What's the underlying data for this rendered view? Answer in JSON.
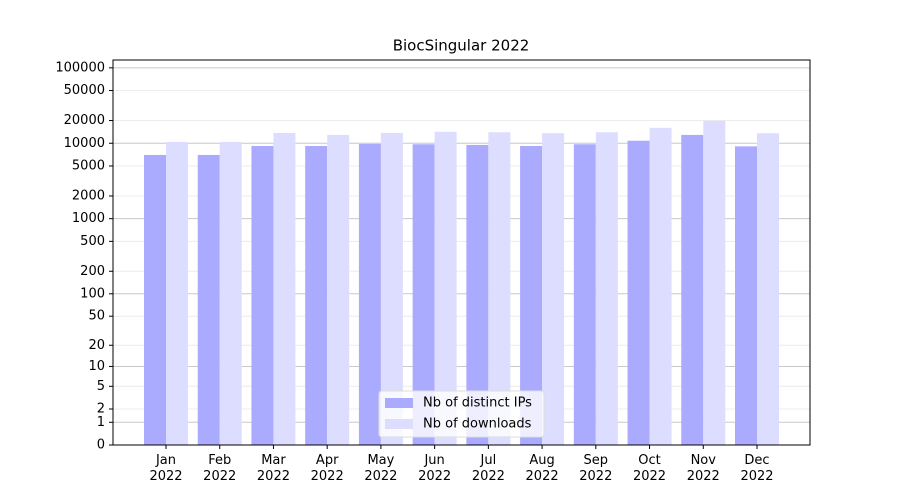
{
  "chart_data": {
    "type": "bar",
    "title": "BiocSingular 2022",
    "categories": [
      "Jan\n2022",
      "Feb\n2022",
      "Mar\n2022",
      "Apr\n2022",
      "May\n2022",
      "Jun\n2022",
      "Jul\n2022",
      "Aug\n2022",
      "Sep\n2022",
      "Oct\n2022",
      "Nov\n2022",
      "Dec\n2022"
    ],
    "series": [
      {
        "name": "Nb of distinct IPs",
        "color": "#aaaaff",
        "values": [
          7000,
          7000,
          9200,
          9200,
          9800,
          9700,
          9500,
          9200,
          9700,
          10800,
          12900,
          9100
        ]
      },
      {
        "name": "Nb of downloads",
        "color": "#ddddff",
        "values": [
          10400,
          10400,
          13700,
          12900,
          13700,
          14200,
          14000,
          13600,
          14000,
          16000,
          19800,
          13600
        ]
      }
    ],
    "yscale": "symlog",
    "ylim": [
      0,
      127000
    ],
    "yticks": [
      0,
      1,
      2,
      5,
      10,
      20,
      50,
      100,
      200,
      500,
      1000,
      2000,
      5000,
      10000,
      20000,
      50000,
      100000
    ],
    "grid": true,
    "legend": "lower center"
  }
}
